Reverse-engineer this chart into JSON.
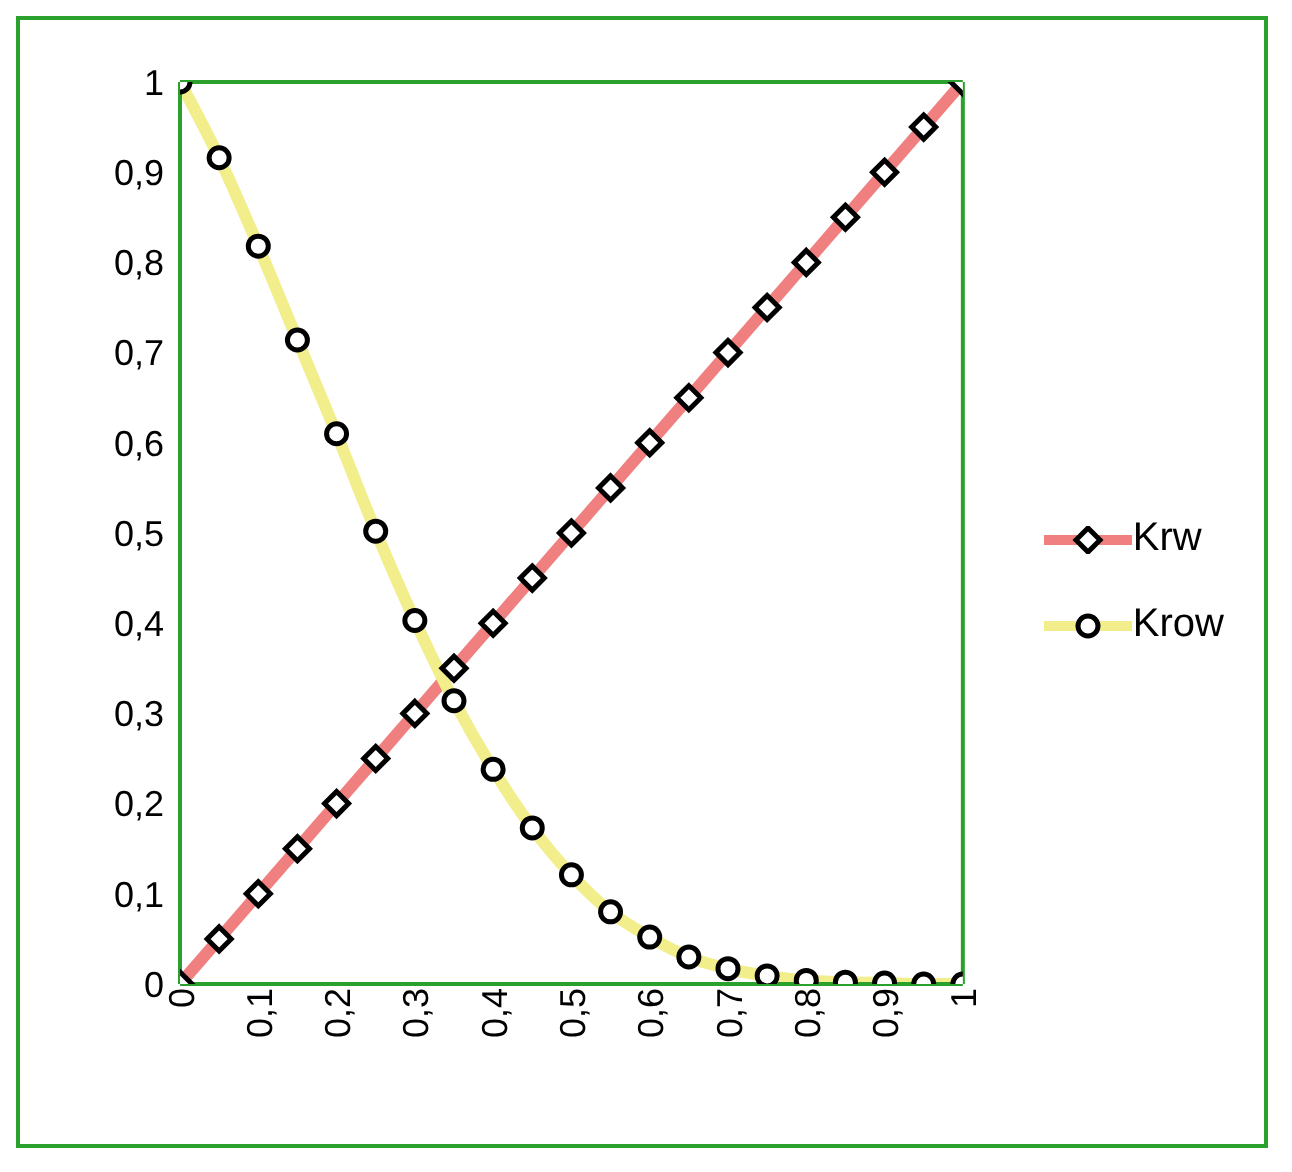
{
  "chart_data": {
    "type": "line",
    "x": [
      0,
      0.05,
      0.1,
      0.15,
      0.2,
      0.25,
      0.3,
      0.35,
      0.4,
      0.45,
      0.5,
      0.55,
      0.6,
      0.65,
      0.7,
      0.75,
      0.8,
      0.85,
      0.9,
      0.95,
      1
    ],
    "series": [
      {
        "name": "Krw",
        "color": "#f08080",
        "marker": "diamond",
        "values": [
          0,
          0.05,
          0.1,
          0.15,
          0.2,
          0.25,
          0.3,
          0.35,
          0.4,
          0.45,
          0.5,
          0.55,
          0.6,
          0.65,
          0.7,
          0.75,
          0.8,
          0.85,
          0.9,
          0.95,
          1
        ]
      },
      {
        "name": "Krow",
        "color": "#f2ee8c",
        "marker": "circle",
        "values": [
          1,
          0.916,
          0.818,
          0.714,
          0.61,
          0.502,
          0.403,
          0.314,
          0.238,
          0.173,
          0.121,
          0.08,
          0.052,
          0.03,
          0.017,
          0.009,
          0.004,
          0.002,
          0.001,
          0,
          0
        ]
      }
    ],
    "xlim": [
      0,
      1
    ],
    "ylim": [
      0,
      1
    ],
    "xticks": [
      0,
      {
        "value": 0.1,
        "label": "0,1"
      },
      {
        "value": 0.2,
        "label": "0,2"
      },
      {
        "value": 0.3,
        "label": "0,3"
      },
      {
        "value": 0.4,
        "label": "0,4"
      },
      {
        "value": 0.5,
        "label": "0,5"
      },
      {
        "value": 0.6,
        "label": "0,6"
      },
      {
        "value": 0.7,
        "label": "0,7"
      },
      {
        "value": 0.8,
        "label": "0,8"
      },
      {
        "value": 0.9,
        "label": "0,9"
      },
      1
    ],
    "yticks": [
      0,
      {
        "value": 0.1,
        "label": "0,1"
      },
      {
        "value": 0.2,
        "label": "0,2"
      },
      {
        "value": 0.3,
        "label": "0,3"
      },
      {
        "value": 0.4,
        "label": "0,4"
      },
      {
        "value": 0.5,
        "label": "0,5"
      },
      {
        "value": 0.6,
        "label": "0,6"
      },
      {
        "value": 0.7,
        "label": "0,7"
      },
      {
        "value": 0.8,
        "label": "0,8"
      },
      {
        "value": 0.9,
        "label": "0,9"
      },
      1
    ],
    "grid": false,
    "legend": "right",
    "line_style": "solid"
  }
}
